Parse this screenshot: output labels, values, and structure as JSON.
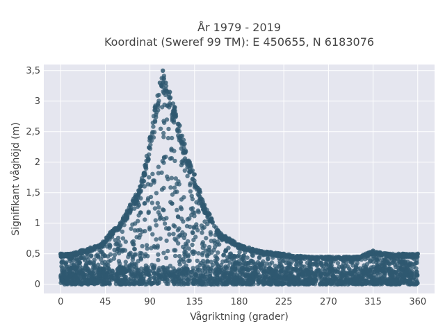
{
  "chart_data": {
    "type": "scatter",
    "title": "År 1979 - 2019",
    "subtitle": "Koordinat (Sweref 99 TM): E 450655, N 6183076",
    "xlabel": "Vågriktning (grader)",
    "ylabel": "Signifikant våghöjd (m)",
    "xlim": [
      -17,
      377
    ],
    "ylim": [
      -0.15,
      3.6
    ],
    "x_ticks": [
      0,
      45,
      90,
      135,
      180,
      225,
      270,
      315,
      360
    ],
    "x_tick_labels": [
      "0",
      "45",
      "90",
      "135",
      "180",
      "225",
      "270",
      "315",
      "360"
    ],
    "y_ticks": [
      0,
      0.5,
      1,
      1.5,
      2,
      2.5,
      3,
      3.5
    ],
    "y_tick_labels": [
      "0",
      "0,5",
      "1",
      "1,5",
      "2",
      "2,5",
      "3",
      "3,5"
    ],
    "grid": true,
    "legend": "none",
    "marker_color": "#2f5870",
    "plot_background": "#e5e6ef",
    "series": [
      {
        "x": [
          0,
          10,
          20,
          30,
          40,
          50,
          60,
          70,
          80,
          85,
          90,
          95,
          100,
          103,
          106,
          110,
          115,
          120,
          125,
          130,
          135,
          140,
          145,
          150,
          160,
          170,
          180,
          190,
          200,
          225,
          250,
          270,
          300,
          315,
          330,
          345,
          360
        ],
        "y": [
          0.5,
          0.5,
          0.55,
          0.6,
          0.65,
          0.85,
          1.0,
          1.3,
          1.6,
          1.95,
          2.4,
          2.9,
          3.3,
          3.5,
          3.3,
          3.15,
          2.9,
          2.6,
          2.3,
          2.0,
          1.8,
          1.55,
          1.3,
          1.15,
          0.85,
          0.75,
          0.65,
          0.6,
          0.55,
          0.5,
          0.45,
          0.45,
          0.45,
          0.55,
          0.5,
          0.5,
          0.5
        ]
      }
    ]
  }
}
